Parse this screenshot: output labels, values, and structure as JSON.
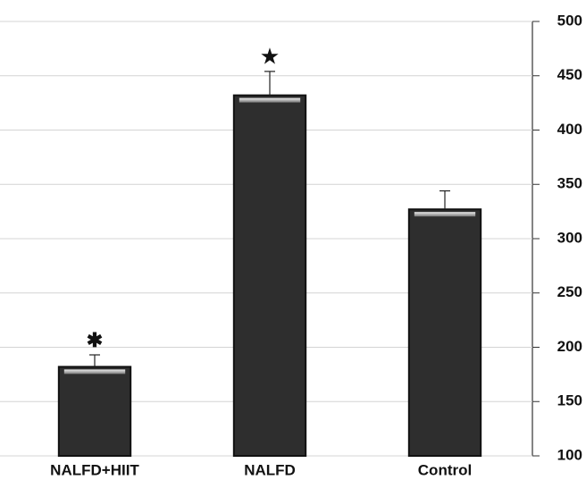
{
  "chart_data": {
    "type": "bar",
    "categories": [
      "NALFD+HIIT",
      "NALFD",
      "Control"
    ],
    "values": [
      182,
      432,
      327
    ],
    "errors": [
      11,
      22,
      17
    ],
    "significance_marks": [
      "✱",
      "★",
      null
    ],
    "color": "#2e2e2e",
    "ylim": [
      100,
      500
    ],
    "yticks": [
      100,
      150,
      200,
      250,
      300,
      350,
      400,
      450,
      500
    ],
    "axis_side": "right",
    "grid": true
  }
}
